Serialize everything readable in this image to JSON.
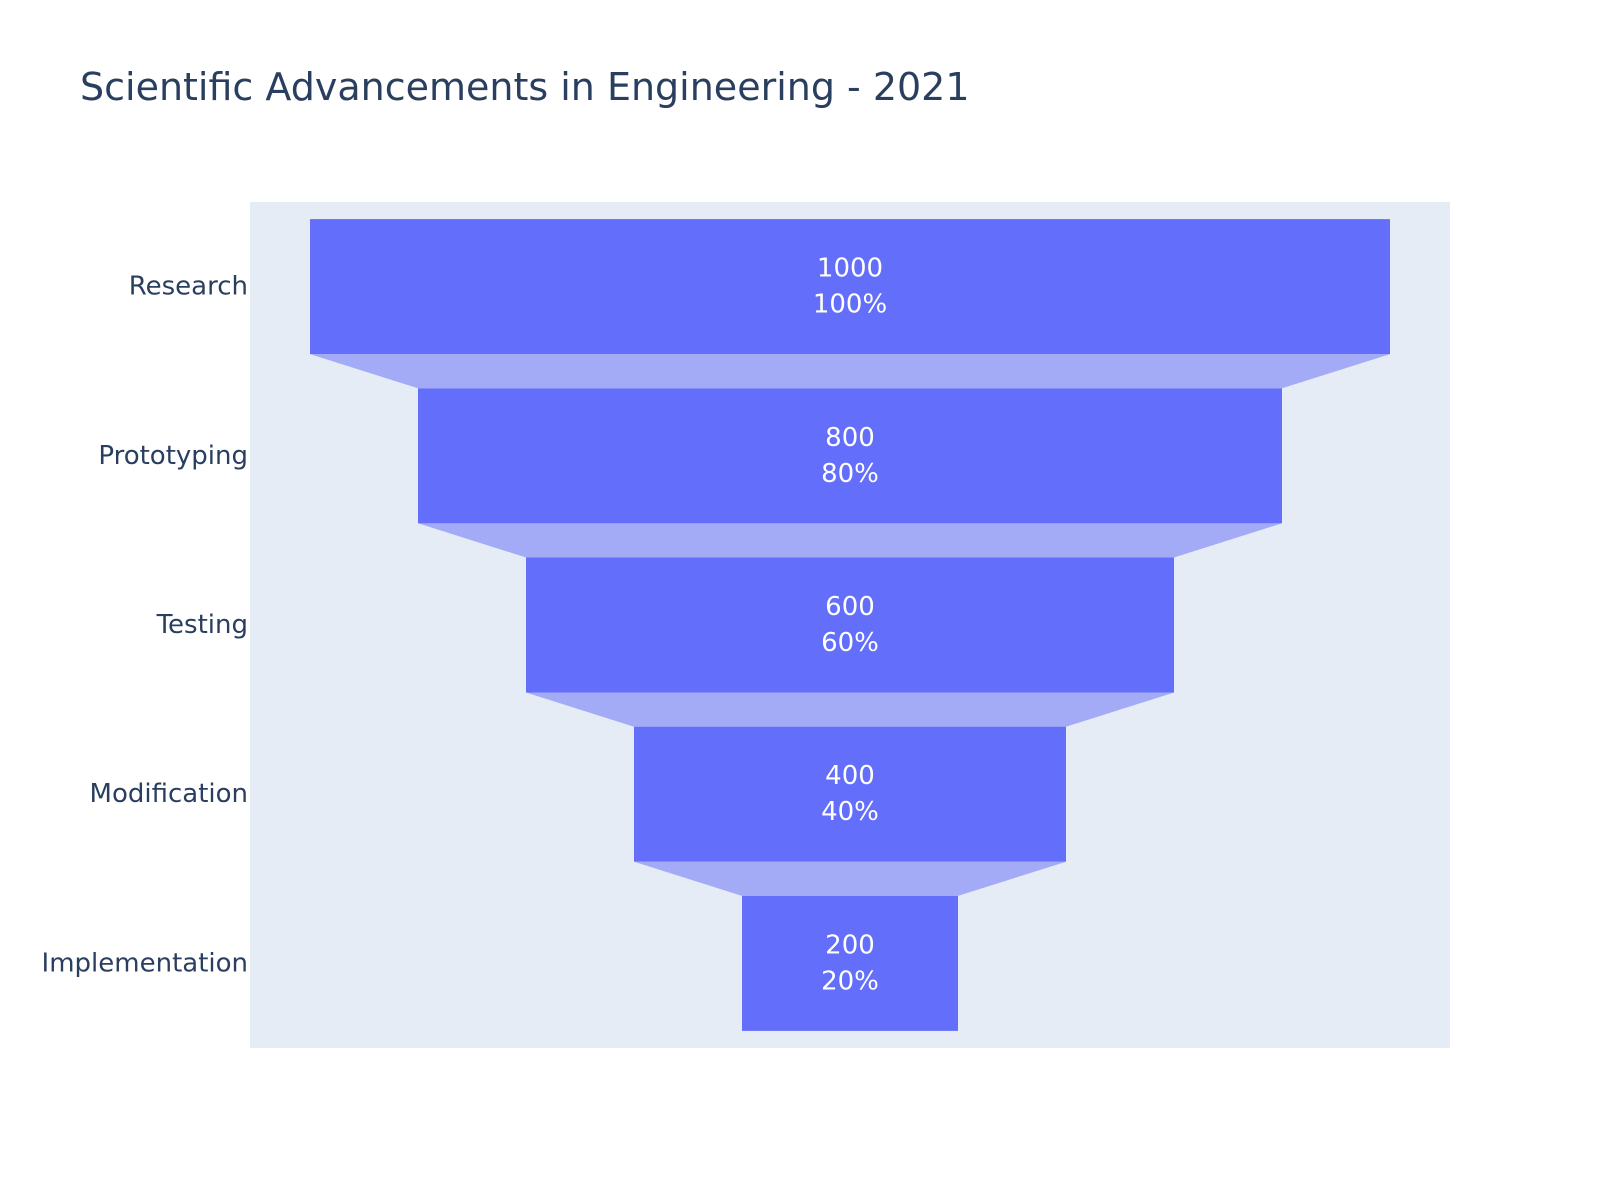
{
  "chart_data": {
    "type": "funnel",
    "title": "Scientific Advancements in Engineering - 2021",
    "categories": [
      "Research",
      "Prototyping",
      "Testing",
      "Modification",
      "Implementation"
    ],
    "values": [
      1000,
      800,
      600,
      400,
      200
    ],
    "percent_labels": [
      "100%",
      "80%",
      "60%",
      "40%",
      "20%"
    ],
    "bar_color": "#636efa",
    "connector_color": "#a3abf7",
    "plot_bgcolor": "#e5ecf6",
    "label_color": "#ffffff",
    "text_color": "#2a3f5f",
    "xlabel": "",
    "ylabel": ""
  }
}
